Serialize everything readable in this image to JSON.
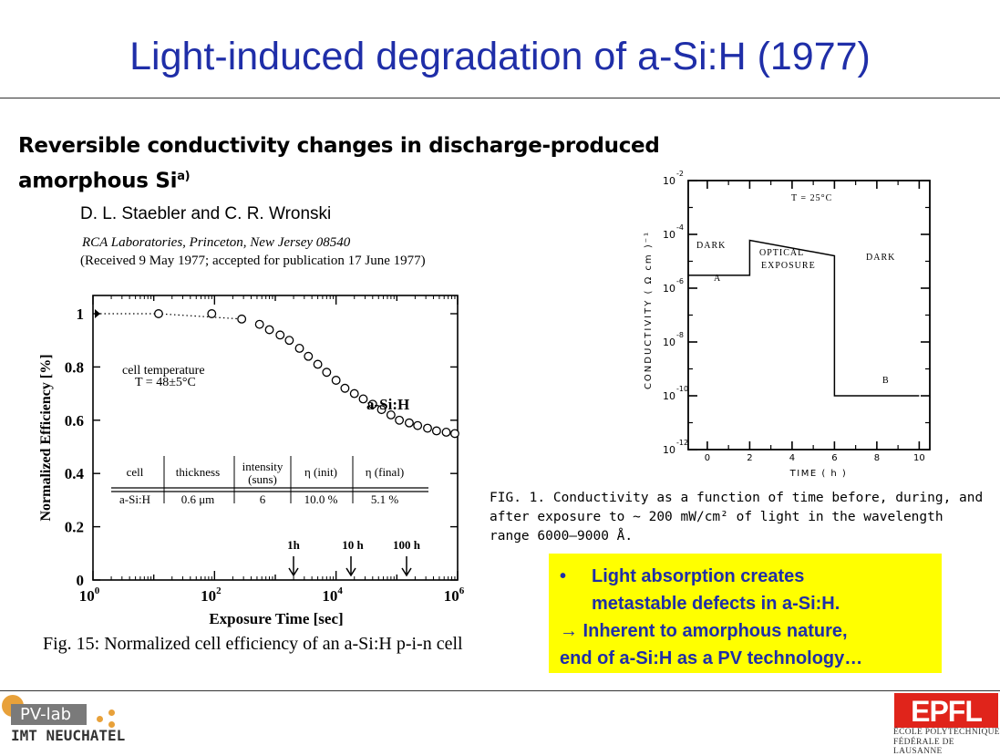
{
  "slide": {
    "title": "Light-induced degradation of a-Si:H (1977)"
  },
  "paper": {
    "title_line1": "Reversible conductivity changes in discharge-produced",
    "title_line2": "amorphous Si",
    "title_sup": "a)",
    "authors": "D. L. Staebler and C. R. Wronski",
    "affiliation": "RCA Laboratories, Princeton, New Jersey 08540",
    "received": "(Received 9 May 1977; accepted for publication 17 June 1977)"
  },
  "fig15": {
    "caption": "Fig. 15: Normalized cell efficiency of an a-Si:H p-i-n cell",
    "ylabel": "Normalized Efficiency  [%]",
    "xlabel": "Exposure Time  [sec]",
    "yticks": [
      "0",
      "0.2",
      "0.4",
      "0.6",
      "0.8",
      "1"
    ],
    "xticks": [
      {
        "base": "10",
        "exp": "0"
      },
      {
        "base": "10",
        "exp": "2"
      },
      {
        "base": "10",
        "exp": "4"
      },
      {
        "base": "10",
        "exp": "6"
      }
    ],
    "cell_temp_line1": "cell temperature",
    "cell_temp_line2": "T = 48±5°C",
    "curve_label": "a-Si:H",
    "markers": [
      "1h",
      "10 h",
      "100 h"
    ],
    "table": {
      "headers": [
        "cell",
        "thickness",
        "intensity",
        "(suns)",
        "η (init)",
        "η (final)"
      ],
      "row": [
        "a-Si:H",
        "0.6 μm",
        "6",
        "10.0  %",
        "5.1  %"
      ]
    }
  },
  "fig1": {
    "ylabel": "CONDUCTIVITY  ( Ω cm )⁻¹",
    "xlabel": "TIME  ( h )",
    "xticks": [
      "0",
      "2",
      "4",
      "6",
      "8",
      "10"
    ],
    "yticks": [
      "-2",
      "-4",
      "-6",
      "-8",
      "-10",
      "-12"
    ],
    "ytick_base": "10",
    "temp": "T = 25°C",
    "label_dark1": "DARK",
    "label_optical1": "OPTICAL",
    "label_optical2": "EXPOSURE",
    "label_dark2": "DARK",
    "label_a": "A",
    "label_b": "B",
    "caption_line1": "FIG. 1. Conductivity as a function of time before, during, and",
    "caption_line2": "after exposure to ~ 200 mW/cm² of light in the wavelength",
    "caption_line3": "range 6000—9000 Å."
  },
  "highlight": {
    "bullet": "•",
    "line1": "Light absorption creates",
    "line2": "metastable defects in a-Si:H.",
    "line3": "→ Inherent to amorphous nature,",
    "line4": "end of a-Si:H as a PV technology…",
    "bg_color": "#ffff00",
    "text_color": "#1f2ea8"
  },
  "footer": {
    "pvlab": "PV-lab",
    "imt": "IMT NEUCHATEL",
    "epfl": "EPFL",
    "epfl_line1": "ÉCOLE POLYTECHNIQUE",
    "epfl_line2": "FÉDÉRALE DE LAUSANNE",
    "accent_color": "#e8a13a",
    "epfl_red": "#e0241b"
  },
  "chart_data": [
    {
      "type": "scatter",
      "title": "",
      "xlabel": "Exposure Time  [sec]",
      "ylabel": "Normalized Efficiency  [%]",
      "xscale": "log",
      "xlim": [
        1,
        1000000
      ],
      "ylim": [
        0,
        1
      ],
      "series": [
        {
          "name": "a-Si:H",
          "x": [
            12,
            90,
            280,
            550,
            800,
            1200,
            1700,
            2500,
            3500,
            5000,
            7000,
            10000,
            14000,
            20000,
            28000,
            40000,
            56000,
            80000,
            110000,
            160000,
            220000,
            320000,
            450000,
            650000,
            900000
          ],
          "y": [
            1.0,
            1.0,
            0.98,
            0.96,
            0.94,
            0.92,
            0.9,
            0.87,
            0.84,
            0.81,
            0.78,
            0.75,
            0.72,
            0.7,
            0.68,
            0.66,
            0.64,
            0.62,
            0.6,
            0.59,
            0.58,
            0.57,
            0.56,
            0.555,
            0.55
          ]
        }
      ]
    },
    {
      "type": "line",
      "title": "",
      "xlabel": "TIME  ( h )",
      "ylabel": "CONDUCTIVITY  ( Ω cm )⁻¹",
      "yscale": "log",
      "xlim": [
        -0.9,
        10.5
      ],
      "ylim": [
        1e-12,
        0.01
      ],
      "series": [
        {
          "name": "",
          "x": [
            -0.9,
            0,
            2,
            2,
            6,
            6,
            10
          ],
          "y": [
            3e-06,
            3e-06,
            3e-06,
            6e-05,
            1.6e-05,
            1e-10,
            1e-10
          ]
        }
      ]
    }
  ]
}
